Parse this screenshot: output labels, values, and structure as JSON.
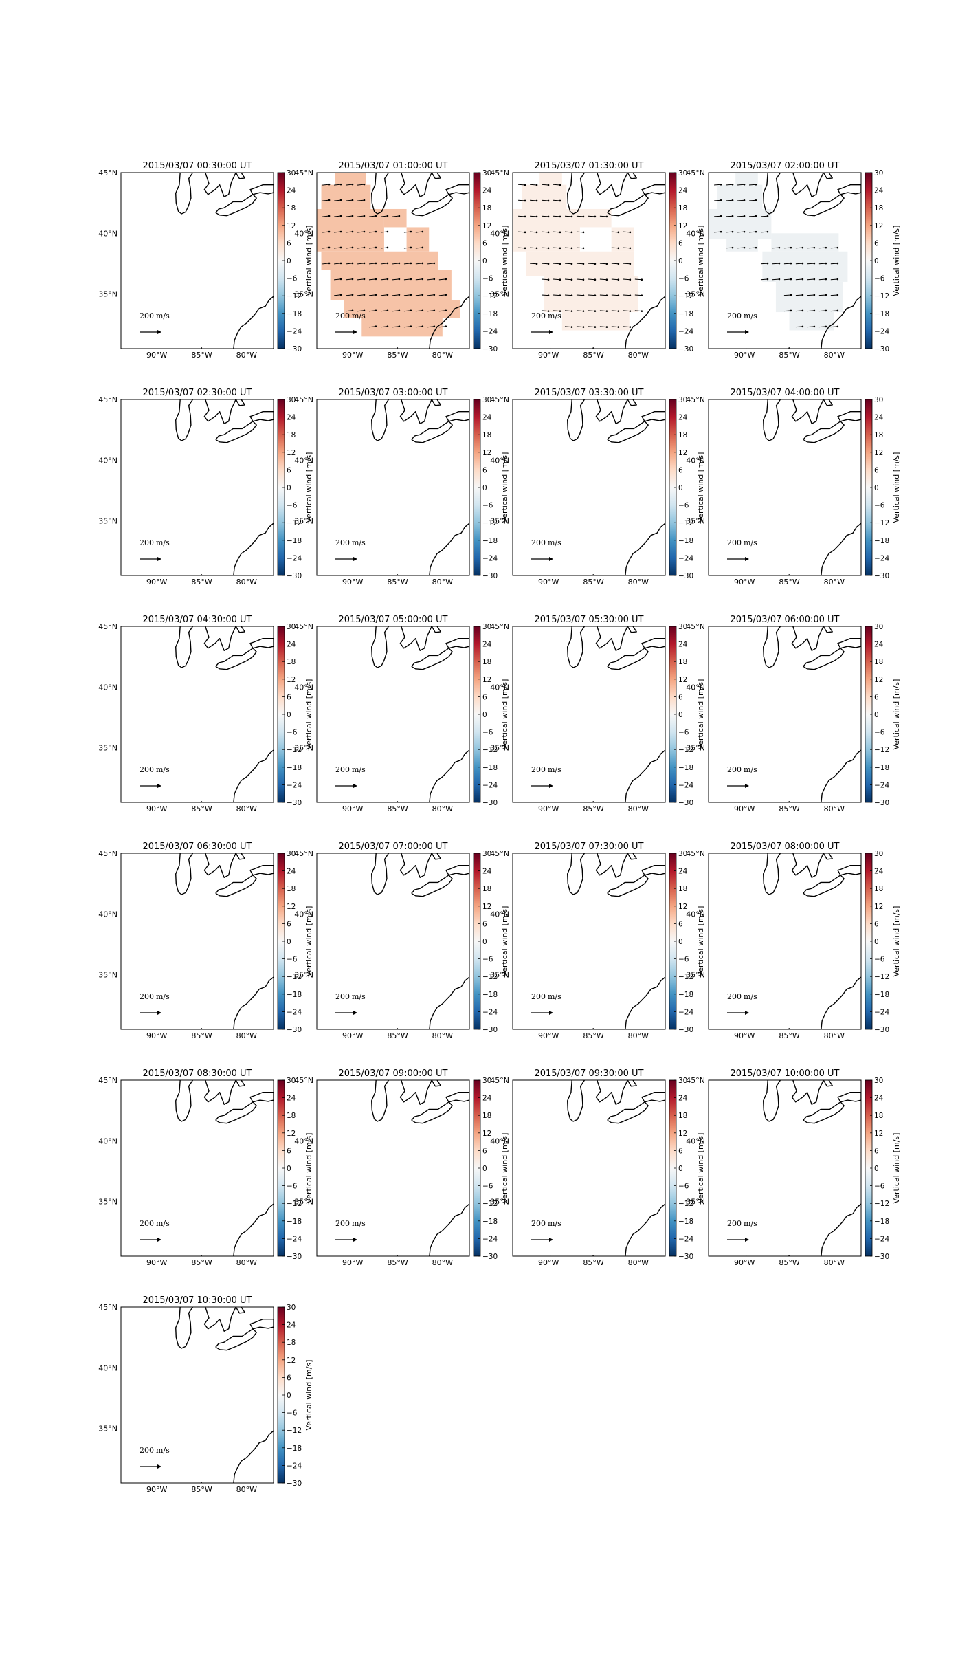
{
  "chart_data": {
    "type": "heatmap",
    "description_kind": "small-multiples map panels",
    "colormap": "RdBu_r",
    "colorbar": {
      "label": "Vertical wind [m/s]",
      "vmin": -30,
      "vmax": 30,
      "ticks": [
        "30",
        "24",
        "18",
        "12",
        "6",
        "0",
        "−6",
        "−12",
        "−18",
        "−24",
        "−30"
      ]
    },
    "axes": {
      "lon_ticks": [
        "90°W",
        "85°W",
        "80°W"
      ],
      "lat_ticks": [
        "45°N",
        "40°N",
        "35°N"
      ],
      "lon_range": [
        -94,
        -77
      ],
      "lat_range": [
        30.5,
        45.0
      ]
    },
    "quiver_key": {
      "label": "200 m/s"
    },
    "panels": [
      {
        "title": "2015/03/07 00:30:00 UT",
        "field_value": null,
        "field_color": null,
        "has_vectors": false
      },
      {
        "title": "2015/03/07 01:00:00 UT",
        "field_value": 10,
        "field_color": "#f6c3a7",
        "has_vectors": true,
        "vector_angle_deg": 6
      },
      {
        "title": "2015/03/07 01:30:00 UT",
        "field_value": 2,
        "field_color": "#fbeee6",
        "has_vectors": true,
        "vector_angle_deg": -4
      },
      {
        "title": "2015/03/07 02:00:00 UT",
        "field_value": -2,
        "field_color": "#edf1f3",
        "has_vectors": true,
        "vector_angle_deg": 4
      },
      {
        "title": "2015/03/07 02:30:00 UT",
        "field_value": null,
        "field_color": null,
        "has_vectors": false
      },
      {
        "title": "2015/03/07 03:00:00 UT",
        "field_value": null,
        "field_color": null,
        "has_vectors": false
      },
      {
        "title": "2015/03/07 03:30:00 UT",
        "field_value": null,
        "field_color": null,
        "has_vectors": false
      },
      {
        "title": "2015/03/07 04:00:00 UT",
        "field_value": null,
        "field_color": null,
        "has_vectors": false
      },
      {
        "title": "2015/03/07 04:30:00 UT",
        "field_value": null,
        "field_color": null,
        "has_vectors": false
      },
      {
        "title": "2015/03/07 05:00:00 UT",
        "field_value": null,
        "field_color": null,
        "has_vectors": false
      },
      {
        "title": "2015/03/07 05:30:00 UT",
        "field_value": null,
        "field_color": null,
        "has_vectors": false
      },
      {
        "title": "2015/03/07 06:00:00 UT",
        "field_value": null,
        "field_color": null,
        "has_vectors": false
      },
      {
        "title": "2015/03/07 06:30:00 UT",
        "field_value": null,
        "field_color": null,
        "has_vectors": false
      },
      {
        "title": "2015/03/07 07:00:00 UT",
        "field_value": null,
        "field_color": null,
        "has_vectors": false
      },
      {
        "title": "2015/03/07 07:30:00 UT",
        "field_value": null,
        "field_color": null,
        "has_vectors": false
      },
      {
        "title": "2015/03/07 08:00:00 UT",
        "field_value": null,
        "field_color": null,
        "has_vectors": false
      },
      {
        "title": "2015/03/07 08:30:00 UT",
        "field_value": null,
        "field_color": null,
        "has_vectors": false
      },
      {
        "title": "2015/03/07 09:00:00 UT",
        "field_value": null,
        "field_color": null,
        "has_vectors": false
      },
      {
        "title": "2015/03/07 09:30:00 UT",
        "field_value": null,
        "field_color": null,
        "has_vectors": false
      },
      {
        "title": "2015/03/07 10:00:00 UT",
        "field_value": null,
        "field_color": null,
        "has_vectors": false
      },
      {
        "title": "2015/03/07 10:30:00 UT",
        "field_value": null,
        "field_color": null,
        "has_vectors": false
      }
    ]
  }
}
